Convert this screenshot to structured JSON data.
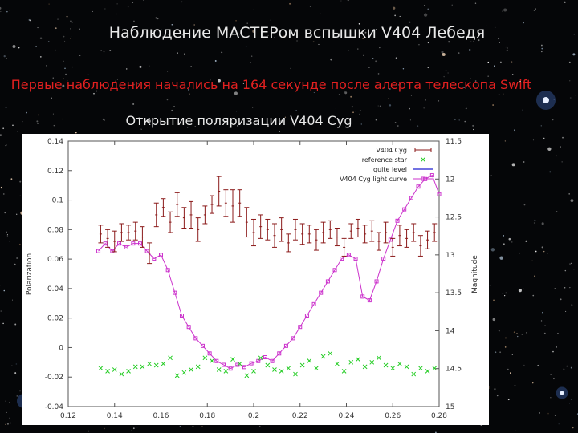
{
  "slide": {
    "title": "Наблюдение МАСТЕРом вспышки V404 Лебедя",
    "subtitle": "Первые наблюдения начались на 164 секунде после алерта телескопа Swift",
    "chart_title": "Открытие поляризации V404 Cyg"
  },
  "colors": {
    "background": "#050608",
    "subtitle": "#e22020",
    "v404": "#8b1a1a",
    "reference": "#22cc22",
    "quiet": "#1f1fd0",
    "light_curve": "#cc33cc"
  },
  "chart_data": {
    "type": "scatter",
    "title": "Открытие поляризации V404 Cyg",
    "xlabel": "",
    "ylabel": "Polarization",
    "y2label": "Magnitude",
    "xlim": [
      0.12,
      0.28
    ],
    "ylim": [
      -0.04,
      0.14
    ],
    "y2lim": [
      11.5,
      15
    ],
    "y2_reversed": true,
    "grid": false,
    "legend_position": "top-right",
    "x_ticks": [
      "0.12",
      "0.14",
      "0.16",
      "0.18",
      "0.2",
      "0.22",
      "0.24",
      "0.26",
      "0.28"
    ],
    "y_ticks": [
      "0.14",
      "0.12",
      "0.1",
      "0.08",
      "0.06",
      "0.04",
      "0.02",
      "0",
      "-0.02",
      "-0.04"
    ],
    "y2_ticks": [
      "11.5",
      "12",
      "12.5",
      "13",
      "13.5",
      "14",
      "14.5",
      "15"
    ],
    "legend": [
      "V404 Cyg",
      "reference star",
      "quite level",
      "V404 Cyg light curve"
    ],
    "series": [
      {
        "name": "V404 Cyg",
        "axis": "y",
        "style": "errorbar",
        "points": [
          [
            0.134,
            0.077,
            0.006
          ],
          [
            0.137,
            0.074,
            0.006
          ],
          [
            0.14,
            0.072,
            0.007
          ],
          [
            0.143,
            0.078,
            0.006
          ],
          [
            0.146,
            0.078,
            0.005
          ],
          [
            0.149,
            0.079,
            0.006
          ],
          [
            0.152,
            0.075,
            0.007
          ],
          [
            0.155,
            0.064,
            0.007
          ],
          [
            0.158,
            0.09,
            0.008
          ],
          [
            0.161,
            0.095,
            0.006
          ],
          [
            0.164,
            0.085,
            0.007
          ],
          [
            0.167,
            0.097,
            0.008
          ],
          [
            0.17,
            0.088,
            0.007
          ],
          [
            0.173,
            0.09,
            0.009
          ],
          [
            0.176,
            0.08,
            0.008
          ],
          [
            0.179,
            0.09,
            0.006
          ],
          [
            0.182,
            0.097,
            0.006
          ],
          [
            0.185,
            0.106,
            0.01
          ],
          [
            0.188,
            0.098,
            0.009
          ],
          [
            0.191,
            0.096,
            0.011
          ],
          [
            0.194,
            0.098,
            0.009
          ],
          [
            0.197,
            0.085,
            0.01
          ],
          [
            0.2,
            0.078,
            0.009
          ],
          [
            0.203,
            0.082,
            0.008
          ],
          [
            0.206,
            0.08,
            0.007
          ],
          [
            0.209,
            0.076,
            0.008
          ],
          [
            0.212,
            0.08,
            0.008
          ],
          [
            0.215,
            0.071,
            0.006
          ],
          [
            0.218,
            0.08,
            0.007
          ],
          [
            0.221,
            0.077,
            0.007
          ],
          [
            0.224,
            0.077,
            0.006
          ],
          [
            0.227,
            0.073,
            0.007
          ],
          [
            0.23,
            0.078,
            0.007
          ],
          [
            0.233,
            0.08,
            0.006
          ],
          [
            0.236,
            0.075,
            0.006
          ],
          [
            0.239,
            0.068,
            0.006
          ],
          [
            0.242,
            0.079,
            0.005
          ],
          [
            0.245,
            0.081,
            0.006
          ],
          [
            0.248,
            0.077,
            0.006
          ],
          [
            0.251,
            0.079,
            0.007
          ],
          [
            0.254,
            0.072,
            0.006
          ],
          [
            0.257,
            0.078,
            0.007
          ],
          [
            0.26,
            0.068,
            0.006
          ],
          [
            0.263,
            0.076,
            0.007
          ],
          [
            0.266,
            0.074,
            0.006
          ],
          [
            0.269,
            0.078,
            0.006
          ],
          [
            0.272,
            0.069,
            0.007
          ],
          [
            0.275,
            0.073,
            0.006
          ],
          [
            0.278,
            0.078,
            0.006
          ]
        ]
      },
      {
        "name": "reference star",
        "axis": "y",
        "style": "cross",
        "points": [
          [
            0.134,
            -0.014
          ],
          [
            0.137,
            -0.016
          ],
          [
            0.14,
            -0.015
          ],
          [
            0.143,
            -0.018
          ],
          [
            0.146,
            -0.016
          ],
          [
            0.149,
            -0.013
          ],
          [
            0.152,
            -0.013
          ],
          [
            0.155,
            -0.011
          ],
          [
            0.158,
            -0.012
          ],
          [
            0.161,
            -0.011
          ],
          [
            0.164,
            -0.007
          ],
          [
            0.167,
            -0.019
          ],
          [
            0.17,
            -0.017
          ],
          [
            0.173,
            -0.015
          ],
          [
            0.176,
            -0.013
          ],
          [
            0.179,
            -0.007
          ],
          [
            0.182,
            -0.009
          ],
          [
            0.185,
            -0.015
          ],
          [
            0.188,
            -0.016
          ],
          [
            0.191,
            -0.008
          ],
          [
            0.194,
            -0.011
          ],
          [
            0.197,
            -0.019
          ],
          [
            0.2,
            -0.016
          ],
          [
            0.203,
            -0.007
          ],
          [
            0.206,
            -0.012
          ],
          [
            0.209,
            -0.015
          ],
          [
            0.212,
            -0.016
          ],
          [
            0.215,
            -0.014
          ],
          [
            0.218,
            -0.018
          ],
          [
            0.221,
            -0.012
          ],
          [
            0.224,
            -0.009
          ],
          [
            0.227,
            -0.014
          ],
          [
            0.23,
            -0.006
          ],
          [
            0.233,
            -0.004
          ],
          [
            0.236,
            -0.011
          ],
          [
            0.239,
            -0.016
          ],
          [
            0.242,
            -0.01
          ],
          [
            0.245,
            -0.008
          ],
          [
            0.248,
            -0.013
          ],
          [
            0.251,
            -0.01
          ],
          [
            0.254,
            -0.007
          ],
          [
            0.257,
            -0.012
          ],
          [
            0.26,
            -0.014
          ],
          [
            0.263,
            -0.011
          ],
          [
            0.266,
            -0.013
          ],
          [
            0.269,
            -0.018
          ],
          [
            0.272,
            -0.014
          ],
          [
            0.275,
            -0.016
          ],
          [
            0.278,
            -0.014
          ]
        ]
      },
      {
        "name": "quite level",
        "axis": "y",
        "style": "line",
        "points": []
      },
      {
        "name": "V404 Cyg light curve",
        "axis": "y2",
        "style": "linespoints",
        "points": [
          [
            0.133,
            12.95
          ],
          [
            0.136,
            12.85
          ],
          [
            0.139,
            12.95
          ],
          [
            0.142,
            12.85
          ],
          [
            0.145,
            12.9
          ],
          [
            0.148,
            12.85
          ],
          [
            0.151,
            12.85
          ],
          [
            0.154,
            12.95
          ],
          [
            0.157,
            13.05
          ],
          [
            0.16,
            13.0
          ],
          [
            0.163,
            13.2
          ],
          [
            0.166,
            13.5
          ],
          [
            0.169,
            13.8
          ],
          [
            0.172,
            13.95
          ],
          [
            0.175,
            14.1
          ],
          [
            0.178,
            14.2
          ],
          [
            0.181,
            14.3
          ],
          [
            0.184,
            14.4
          ],
          [
            0.187,
            14.45
          ],
          [
            0.19,
            14.5
          ],
          [
            0.193,
            14.45
          ],
          [
            0.196,
            14.48
          ],
          [
            0.199,
            14.43
          ],
          [
            0.202,
            14.4
          ],
          [
            0.205,
            14.35
          ],
          [
            0.208,
            14.4
          ],
          [
            0.211,
            14.3
          ],
          [
            0.214,
            14.2
          ],
          [
            0.217,
            14.1
          ],
          [
            0.22,
            13.95
          ],
          [
            0.223,
            13.8
          ],
          [
            0.226,
            13.65
          ],
          [
            0.229,
            13.5
          ],
          [
            0.232,
            13.35
          ],
          [
            0.235,
            13.2
          ],
          [
            0.238,
            13.05
          ],
          [
            0.241,
            13.0
          ],
          [
            0.244,
            13.05
          ],
          [
            0.247,
            13.55
          ],
          [
            0.25,
            13.6
          ],
          [
            0.253,
            13.35
          ],
          [
            0.256,
            13.05
          ],
          [
            0.259,
            12.8
          ],
          [
            0.262,
            12.55
          ],
          [
            0.265,
            12.4
          ],
          [
            0.268,
            12.25
          ],
          [
            0.271,
            12.1
          ],
          [
            0.274,
            12.0
          ],
          [
            0.277,
            11.95
          ],
          [
            0.28,
            12.2
          ]
        ]
      }
    ]
  }
}
